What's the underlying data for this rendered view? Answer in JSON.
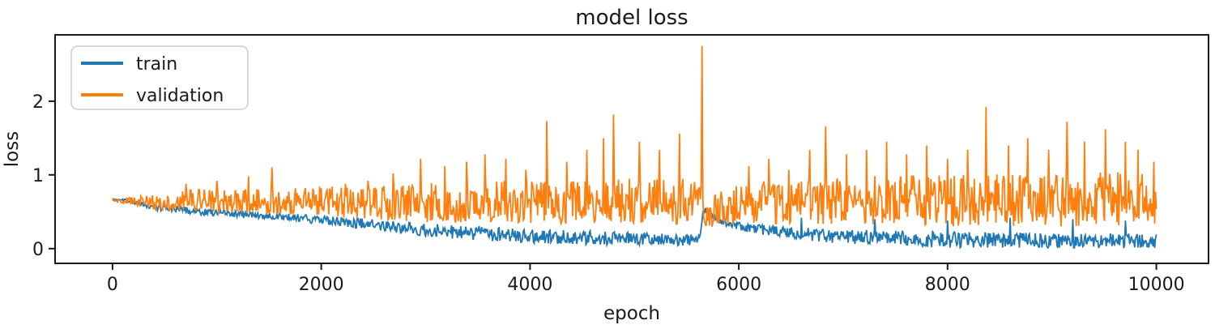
{
  "chart_data": {
    "type": "line",
    "title": "model loss",
    "xlabel": "epoch",
    "ylabel": "loss",
    "xlim": [
      -550,
      10500
    ],
    "ylim": [
      -0.2,
      2.9
    ],
    "xticks": [
      0,
      2000,
      4000,
      6000,
      8000,
      10000
    ],
    "yticks": [
      0,
      1,
      2
    ],
    "grid": false,
    "legend": {
      "position": "upper-left",
      "entries": [
        "train",
        "validation"
      ]
    },
    "x_data_range": [
      0,
      10000
    ],
    "series": [
      {
        "name": "train",
        "color": "#1f77b4",
        "description": "noisy band: piecewise [epoch, min, max] envelope; steady decline with optimizer-restart bump near epoch 5650",
        "envelope": [
          [
            0,
            0.65,
            0.68
          ],
          [
            150,
            0.63,
            0.67
          ],
          [
            400,
            0.52,
            0.6
          ],
          [
            800,
            0.46,
            0.56
          ],
          [
            1200,
            0.42,
            0.52
          ],
          [
            1600,
            0.38,
            0.48
          ],
          [
            2000,
            0.33,
            0.45
          ],
          [
            2400,
            0.27,
            0.41
          ],
          [
            2800,
            0.2,
            0.37
          ],
          [
            3200,
            0.14,
            0.33
          ],
          [
            3600,
            0.1,
            0.3
          ],
          [
            4000,
            0.07,
            0.27
          ],
          [
            4600,
            0.05,
            0.24
          ],
          [
            5200,
            0.04,
            0.21
          ],
          [
            5630,
            0.03,
            0.19
          ],
          [
            5660,
            0.5,
            0.62
          ],
          [
            5760,
            0.38,
            0.48
          ],
          [
            5880,
            0.3,
            0.4
          ],
          [
            6050,
            0.23,
            0.34
          ],
          [
            6400,
            0.13,
            0.3
          ],
          [
            7000,
            0.07,
            0.26
          ],
          [
            8000,
            0.01,
            0.23
          ],
          [
            9000,
            0.01,
            0.21
          ],
          [
            10000,
            0.0,
            0.2
          ]
        ],
        "spikes": [
          [
            6600,
            0.42
          ],
          [
            7300,
            0.4
          ],
          [
            8000,
            0.38
          ],
          [
            8600,
            0.42
          ],
          [
            9200,
            0.4
          ],
          [
            9700,
            0.38
          ]
        ]
      },
      {
        "name": "validation",
        "color": "#ff7f0e",
        "description": "noisy band: piecewise [epoch, min, max] envelope with frequent upward spikes; giant spike ~2.75 near epoch 5650",
        "envelope": [
          [
            0,
            0.64,
            0.68
          ],
          [
            150,
            0.6,
            0.7
          ],
          [
            400,
            0.52,
            0.76
          ],
          [
            800,
            0.5,
            0.8
          ],
          [
            1200,
            0.48,
            0.82
          ],
          [
            1600,
            0.46,
            0.82
          ],
          [
            2000,
            0.44,
            0.84
          ],
          [
            2400,
            0.4,
            0.86
          ],
          [
            2800,
            0.37,
            0.88
          ],
          [
            3200,
            0.35,
            0.9
          ],
          [
            3600,
            0.34,
            0.92
          ],
          [
            4000,
            0.33,
            0.94
          ],
          [
            5000,
            0.33,
            0.95
          ],
          [
            5630,
            0.33,
            0.95
          ],
          [
            5680,
            0.28,
            0.68
          ],
          [
            5850,
            0.32,
            0.8
          ],
          [
            6100,
            0.34,
            0.92
          ],
          [
            7000,
            0.33,
            0.98
          ],
          [
            8000,
            0.3,
            1.0
          ],
          [
            9000,
            0.3,
            1.02
          ],
          [
            10000,
            0.3,
            1.05
          ]
        ],
        "spikes": [
          [
            700,
            0.88
          ],
          [
            1000,
            0.92
          ],
          [
            1300,
            0.98
          ],
          [
            1530,
            1.1
          ],
          [
            1980,
            0.84
          ],
          [
            2230,
            0.88
          ],
          [
            2450,
            0.92
          ],
          [
            2690,
            1.02
          ],
          [
            2950,
            1.22
          ],
          [
            3180,
            1.12
          ],
          [
            3390,
            1.18
          ],
          [
            3570,
            1.28
          ],
          [
            3765,
            1.22
          ],
          [
            3960,
            1.07
          ],
          [
            4160,
            1.73
          ],
          [
            4350,
            1.18
          ],
          [
            4540,
            1.34
          ],
          [
            4700,
            1.5
          ],
          [
            4800,
            1.82
          ],
          [
            5050,
            1.45
          ],
          [
            5240,
            1.34
          ],
          [
            5435,
            1.56
          ],
          [
            5648,
            2.75
          ],
          [
            6095,
            1.12
          ],
          [
            6290,
            1.22
          ],
          [
            6480,
            1.07
          ],
          [
            6680,
            1.34
          ],
          [
            6830,
            1.66
          ],
          [
            7030,
            1.28
          ],
          [
            7220,
            1.34
          ],
          [
            7415,
            1.45
          ],
          [
            7610,
            1.28
          ],
          [
            7800,
            1.4
          ],
          [
            8000,
            1.22
          ],
          [
            8190,
            1.34
          ],
          [
            8370,
            1.92
          ],
          [
            8580,
            1.4
          ],
          [
            8770,
            1.5
          ],
          [
            8965,
            1.34
          ],
          [
            9145,
            1.72
          ],
          [
            9315,
            1.45
          ],
          [
            9510,
            1.62
          ],
          [
            9705,
            1.45
          ],
          [
            9820,
            1.34
          ],
          [
            9975,
            1.18
          ]
        ]
      }
    ]
  }
}
